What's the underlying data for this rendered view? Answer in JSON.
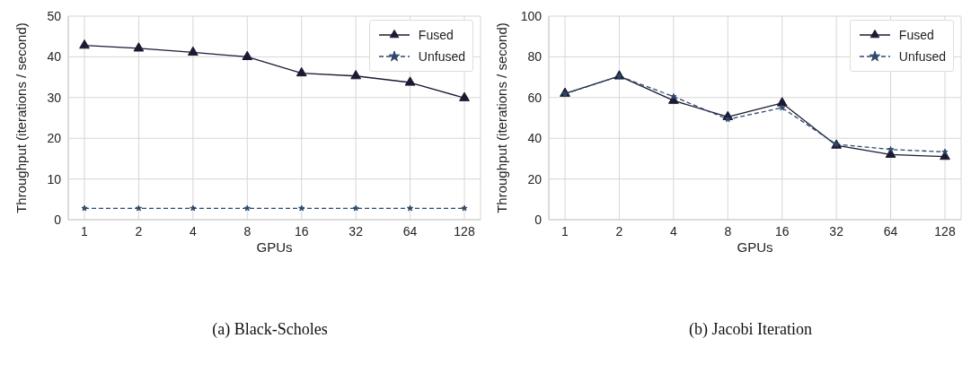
{
  "chart_data": [
    {
      "type": "line",
      "title": "(a) Black-Scholes",
      "xlabel": "GPUs",
      "ylabel": "Throughput (iterations / second)",
      "categories": [
        "1",
        "2",
        "4",
        "8",
        "16",
        "32",
        "64",
        "128"
      ],
      "series": [
        {
          "name": "Fused",
          "color": "#1c1a33",
          "values": [
            42.8,
            42.1,
            41.1,
            40.0,
            36.0,
            35.3,
            33.7,
            29.9
          ],
          "marker": "triangle",
          "line_style": "solid"
        },
        {
          "name": "Unfused",
          "color": "#2c4a6a",
          "values": [
            2.8,
            2.8,
            2.8,
            2.8,
            2.8,
            2.8,
            2.8,
            2.8
          ],
          "marker": "star",
          "line_style": "dashed"
        }
      ],
      "ylim": [
        0,
        50
      ],
      "yticks": [
        0,
        10,
        20,
        30,
        40,
        50
      ],
      "grid": true,
      "legend": "top right"
    },
    {
      "type": "line",
      "title": "(b) Jacobi Iteration",
      "xlabel": "GPUs",
      "ylabel": "Throughput (iterations / second)",
      "categories": [
        "1",
        "2",
        "4",
        "8",
        "16",
        "32",
        "64",
        "128"
      ],
      "series": [
        {
          "name": "Fused",
          "color": "#1c1a33",
          "values": [
            62.0,
            70.5,
            58.5,
            50.5,
            57.3,
            36.5,
            32.0,
            31.0
          ],
          "marker": "triangle",
          "line_style": "solid"
        },
        {
          "name": "Unfused",
          "color": "#2c4a6a",
          "values": [
            61.8,
            70.5,
            60.5,
            49.3,
            55.0,
            37.0,
            34.5,
            33.3
          ],
          "marker": "star",
          "line_style": "dashed"
        }
      ],
      "ylim": [
        0,
        100
      ],
      "yticks": [
        0,
        20,
        40,
        60,
        80,
        100
      ],
      "grid": true,
      "legend": "top right"
    }
  ]
}
